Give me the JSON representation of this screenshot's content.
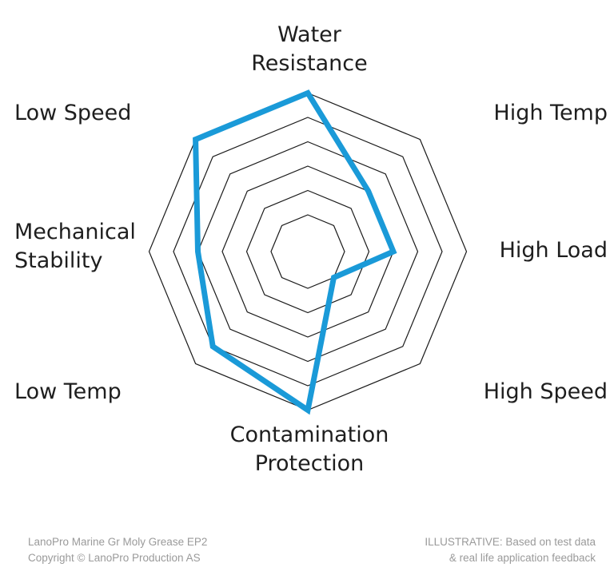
{
  "chart_data": {
    "type": "radar",
    "title": "",
    "axes": [
      "Water Resistance",
      "High Temp",
      "High Load",
      "High Speed",
      "Contamination Protection",
      "Low Temp",
      "Mechanical Stability",
      "Low Speed"
    ],
    "axis_label_lines": [
      [
        "Water",
        "Resistance"
      ],
      [
        "High Temp"
      ],
      [
        "High Load"
      ],
      [
        "High Speed"
      ],
      [
        "Contamination",
        "Protection"
      ],
      [
        "Low Temp"
      ],
      [
        "Mechanical",
        "Stability"
      ],
      [
        "Low Speed"
      ]
    ],
    "levels": 6,
    "range": [
      0,
      6
    ],
    "series": [
      {
        "name": "LanoPro Marine Gr Moly Grease EP2",
        "values": [
          6,
          3,
          3,
          1,
          6,
          5,
          4,
          6
        ],
        "color": "#1a9ad8"
      }
    ],
    "grid": true,
    "legend": "none"
  },
  "footer": {
    "product": "LanoPro Marine Gr Moly Grease EP2",
    "copyright": "Copyright © LanoPro Production AS",
    "note_line1": "ILLUSTRATIVE: Based on test data",
    "note_line2": "& real life application feedback"
  }
}
